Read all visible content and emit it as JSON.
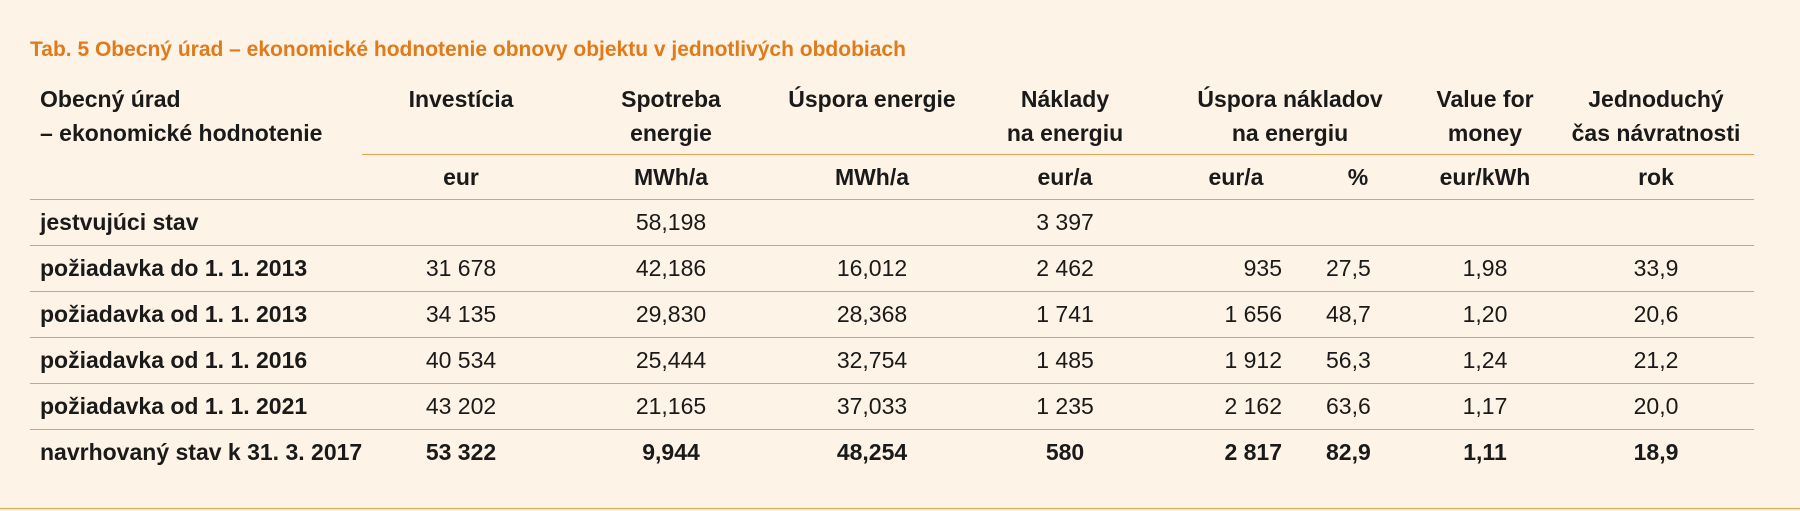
{
  "caption": "Tab. 5 Obecný úrad – ekonomické hodnotenie obnovy objektu v jednotlivých obdobiach",
  "header": {
    "first_line1": "Obecný úrad",
    "first_line2": "– ekonomické hodnotenie",
    "investicia": "Investícia",
    "spotreba_line1": "Spotreba",
    "spotreba_line2": "energie",
    "uspora_energie": "Úspora energie",
    "naklady_line1": "Náklady",
    "naklady_line2": "na energiu",
    "uspora_nakladov_line1": "Úspora nákladov",
    "uspora_nakladov_line2": "na energiu",
    "vfm_line1": "Value for",
    "vfm_line2": "money",
    "cas_line1": "Jednoduchý",
    "cas_line2": "čas návratnosti"
  },
  "units": [
    "eur",
    "MWh/a",
    "MWh/a",
    "eur/a",
    "eur/a",
    "%",
    "eur/kWh",
    "rok"
  ],
  "rows": [
    {
      "label": "jestvujúci stav",
      "cells": [
        "",
        "58,198",
        "",
        "3 397",
        "",
        "",
        "",
        ""
      ]
    },
    {
      "label": "požiadavka do 1. 1. 2013",
      "cells": [
        "31 678",
        "42,186",
        "16,012",
        "2 462",
        "935",
        "27,5",
        "1,98",
        "33,9"
      ]
    },
    {
      "label": "požiadavka od 1. 1. 2013",
      "cells": [
        "34 135",
        "29,830",
        "28,368",
        "1 741",
        "1 656",
        "48,7",
        "1,20",
        "20,6"
      ]
    },
    {
      "label": "požiadavka od 1. 1. 2016",
      "cells": [
        "40 534",
        "25,444",
        "32,754",
        "1 485",
        "1 912",
        "56,3",
        "1,24",
        "21,2"
      ]
    },
    {
      "label": "požiadavka od 1. 1. 2021",
      "cells": [
        "43 202",
        "21,165",
        "37,033",
        "1 235",
        "2 162",
        "63,6",
        "1,17",
        "20,0"
      ]
    },
    {
      "label": "navrhovaný stav k 31. 3. 2017",
      "cells": [
        "53 322",
        "9,944",
        "48,254",
        "580",
        "2 817",
        "82,9",
        "1,11",
        "18,9"
      ]
    }
  ]
}
